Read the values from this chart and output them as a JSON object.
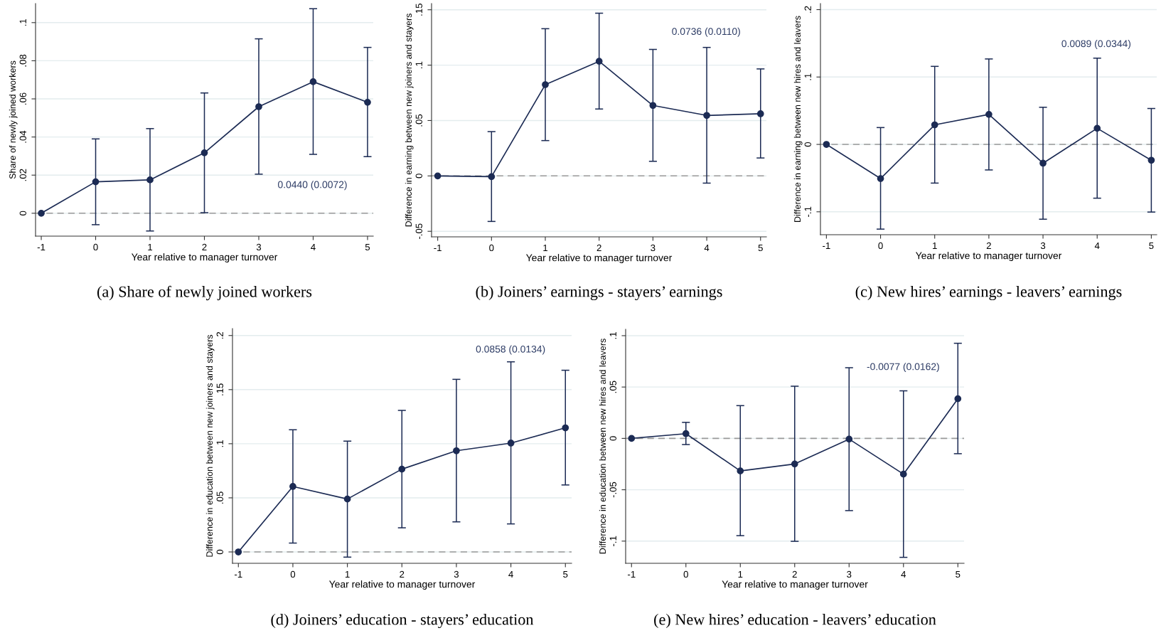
{
  "chart_data": [
    {
      "type": "line",
      "title": "(a) Share of newly joined workers",
      "xlabel": "Year relative to manager turnover",
      "ylabel": "Share of newly joined workers",
      "x": [
        -1,
        0,
        1,
        2,
        3,
        4,
        5
      ],
      "series": [
        {
          "color": "#1c2b54",
          "values": [
            0,
            0.0165,
            0.0175,
            0.0317,
            0.0559,
            0.069,
            0.0582
          ],
          "errors": [
            null,
            [
              -0.006,
              0.039
            ],
            [
              -0.0093,
              0.0444
            ],
            [
              0.0003,
              0.0631
            ],
            [
              0.0205,
              0.0915
            ],
            [
              0.0309,
              0.1073
            ],
            [
              0.0297,
              0.087
            ]
          ]
        }
      ],
      "xlim": [
        -1.105,
        5.105
      ],
      "xticks": [
        -1,
        0,
        1,
        2,
        3,
        4,
        5
      ],
      "ylim": [
        -0.012,
        0.11
      ],
      "yticks": [
        0,
        {
          "value": 0.02,
          "label": ".02"
        },
        {
          "value": 0.04,
          "label": ".04"
        },
        {
          "value": 0.06,
          "label": ".06"
        },
        {
          "value": 0.08,
          "label": ".08"
        },
        {
          "value": 0.1,
          "label": ".1"
        }
      ],
      "ref_lines": [
        {
          "axis": "y",
          "value": 0,
          "color": "#999999",
          "line_style": "dashed"
        }
      ],
      "annotations": [
        "0.0440 (0.0072)"
      ],
      "grid": "y",
      "marker": "circle",
      "line_style": "solid"
    },
    {
      "type": "line",
      "title": "(b) Joiners’ earnings - stayers’ earnings",
      "xlabel": "Year relative to manager turnover",
      "ylabel": "Difference in earning between new joiners and stayers",
      "x": [
        -1,
        0,
        1,
        2,
        3,
        4,
        5
      ],
      "series": [
        {
          "color": "#1c2b54",
          "values": [
            0,
            -0.0007,
            0.0824,
            0.1035,
            0.0636,
            0.0546,
            0.0561
          ],
          "errors": [
            null,
            [
              -0.0411,
              0.04
            ],
            [
              0.0319,
              0.1329
            ],
            [
              0.0604,
              0.1469
            ],
            [
              0.0132,
              0.1142
            ],
            [
              -0.0065,
              0.116
            ],
            [
              0.0162,
              0.0966
            ]
          ]
        }
      ],
      "xlim": [
        -1.114,
        5.109
      ],
      "xticks": [
        -1,
        0,
        1,
        2,
        3,
        4,
        5
      ],
      "ylim": [
        -0.055,
        0.1556
      ],
      "yticks": [
        {
          "value": -0.05,
          "label": "-.05"
        },
        0,
        {
          "value": 0.05,
          "label": ".05"
        },
        {
          "value": 0.1,
          "label": ".1"
        },
        {
          "value": 0.15,
          "label": ".15"
        }
      ],
      "ref_lines": [
        {
          "axis": "y",
          "value": 0,
          "color": "#999999",
          "line_style": "dashed"
        }
      ],
      "annotations": [
        "0.0736 (0.0110)"
      ],
      "grid": "y",
      "marker": "circle",
      "line_style": "solid"
    },
    {
      "type": "line",
      "title": "(c) New hires’ earnings - leavers’ earnings",
      "xlabel": "Year relative to manager turnover",
      "ylabel": "Difference in earning between new hires and leavers",
      "x": [
        -1,
        0,
        1,
        2,
        3,
        4,
        5
      ],
      "series": [
        {
          "color": "#1c2b54",
          "values": [
            0,
            -0.0507,
            0.029,
            0.0445,
            -0.0279,
            0.0239,
            -0.0235
          ],
          "errors": [
            null,
            [
              -0.1257,
              0.025
            ],
            [
              -0.0574,
              0.1158
            ],
            [
              -0.0379,
              0.1268
            ],
            [
              -0.111,
              0.0551
            ],
            [
              -0.0798,
              0.128
            ],
            [
              -0.1004,
              0.0533
            ]
          ]
        }
      ],
      "xlim": [
        -1.11,
        5.1
      ],
      "xticks": [
        -1,
        0,
        1,
        2,
        3,
        4,
        5
      ],
      "ylim": [
        -0.134,
        0.209
      ],
      "yticks": [
        {
          "value": -0.1,
          "label": "-.1"
        },
        0,
        {
          "value": 0.1,
          "label": ".1"
        },
        {
          "value": 0.2,
          "label": ".2"
        }
      ],
      "ref_lines": [
        {
          "axis": "y",
          "value": 0,
          "color": "#999999",
          "line_style": "dashed"
        }
      ],
      "annotations": [
        "0.0089 (0.0344)"
      ],
      "grid": "y",
      "marker": "circle",
      "line_style": "solid"
    },
    {
      "type": "line",
      "title": "(d) Joiners’ education - stayers’ education",
      "xlabel": "Year relative to manager turnover",
      "ylabel": "Difference in education between new joiners and stayers",
      "x": [
        -1,
        0,
        1,
        2,
        3,
        4,
        5
      ],
      "series": [
        {
          "color": "#1c2b54",
          "values": [
            0,
            0.0605,
            0.0489,
            0.0765,
            0.0935,
            0.1006,
            0.1147
          ],
          "errors": [
            null,
            [
              0.0082,
              0.1129
            ],
            [
              -0.0048,
              0.1024
            ],
            [
              0.0223,
              0.1308
            ],
            [
              0.0278,
              0.1595
            ],
            [
              0.0259,
              0.1757
            ],
            [
              0.0619,
              0.1679
            ]
          ]
        }
      ],
      "xlim": [
        -1.108,
        5.114
      ],
      "xticks": [
        -1,
        0,
        1,
        2,
        3,
        4,
        5
      ],
      "ylim": [
        -0.0105,
        0.2064
      ],
      "yticks": [
        0,
        {
          "value": 0.05,
          "label": ".05"
        },
        {
          "value": 0.1,
          "label": ".1"
        },
        {
          "value": 0.15,
          "label": ".15"
        },
        {
          "value": 0.2,
          "label": ".2"
        }
      ],
      "ref_lines": [
        {
          "axis": "y",
          "value": 0,
          "color": "#999999",
          "line_style": "dashed"
        }
      ],
      "annotations": [
        "0.0858 (0.0134)"
      ],
      "grid": "y",
      "marker": "circle",
      "line_style": "solid"
    },
    {
      "type": "line",
      "title": "(e) New hires’ education - leavers’ education",
      "xlabel": "Year relative to manager turnover",
      "ylabel": "Difference in education between new hires and leavers",
      "x": [
        -1,
        0,
        1,
        2,
        3,
        4,
        5
      ],
      "series": [
        {
          "color": "#1c2b54",
          "values": [
            0,
            0.0046,
            -0.0317,
            -0.0249,
            -0.0007,
            -0.0348,
            0.0386
          ],
          "errors": [
            null,
            [
              -0.006,
              0.0156
            ],
            [
              -0.0947,
              0.0319
            ],
            [
              -0.1002,
              0.0508
            ],
            [
              -0.0703,
              0.0688
            ],
            [
              -0.1158,
              0.0463
            ],
            [
              -0.0149,
              0.0926
            ]
          ]
        }
      ],
      "xlim": [
        -1.108,
        5.114
      ],
      "xticks": [
        -1,
        0,
        1,
        2,
        3,
        4,
        5
      ],
      "ylim": [
        -0.1216,
        0.1062
      ],
      "yticks": [
        {
          "value": -0.1,
          "label": "-.1"
        },
        {
          "value": -0.05,
          "label": "-.05"
        },
        0,
        {
          "value": 0.05,
          "label": ".05"
        },
        {
          "value": 0.1,
          "label": ".1"
        }
      ],
      "ref_lines": [
        {
          "axis": "y",
          "value": 0,
          "color": "#999999",
          "line_style": "dashed"
        }
      ],
      "annotations": [
        "-0.0077 (0.0162)"
      ],
      "grid": "y",
      "marker": "circle",
      "line_style": "solid"
    }
  ]
}
